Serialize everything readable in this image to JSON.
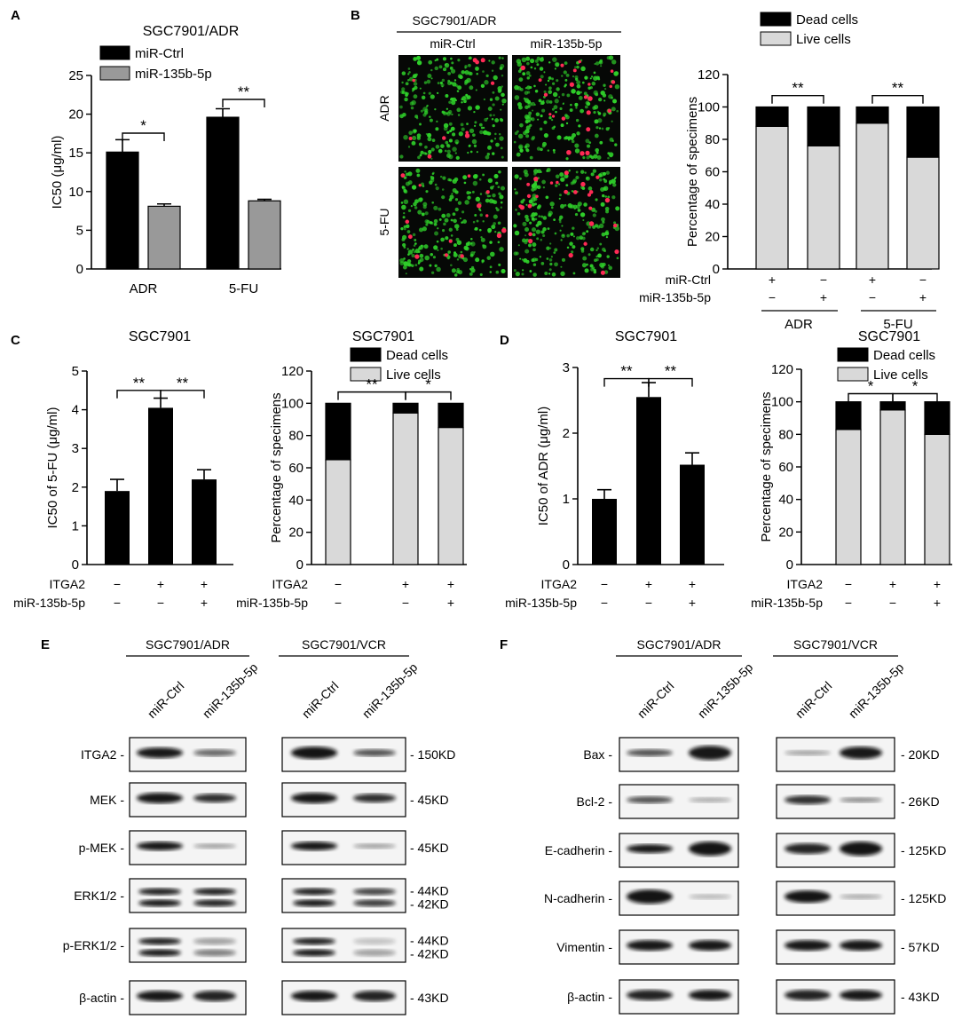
{
  "colors": {
    "black": "#000000",
    "gray": "#999999",
    "light_gray": "#d9d9d9",
    "cell_green": "#2fd12a",
    "cell_red": "#ff2a55"
  },
  "panel_letters": {
    "A": "A",
    "B": "B",
    "C": "C",
    "D": "D",
    "E": "E",
    "F": "F"
  },
  "icons": {
    "micrograph": "fluorescence-micrograph-image",
    "blot": "western-blot-band-image"
  },
  "chart_data": [
    {
      "id": "A",
      "type": "bar",
      "title": "SGC7901/ADR",
      "ylabel": "IC50 (μg/ml)",
      "ylim": [
        0,
        25
      ],
      "yticks": [
        0,
        5,
        10,
        15,
        20,
        25
      ],
      "categories": [
        "ADR",
        "5-FU"
      ],
      "series": [
        {
          "name": "miR-Ctrl",
          "values": [
            15.1,
            19.6
          ],
          "errors": [
            1.6,
            1.1
          ],
          "color": "#000000"
        },
        {
          "name": "miR-135b-5p",
          "values": [
            8.1,
            8.8
          ],
          "errors": [
            0.3,
            0.2
          ],
          "color": "#999999"
        }
      ],
      "significance": [
        {
          "text": "*",
          "category": 0
        },
        {
          "text": "**",
          "category": 1
        }
      ],
      "legend_position": "top-left"
    },
    {
      "id": "B",
      "type": "bar",
      "stacked": true,
      "ylabel": "Percentage of specimens",
      "ylim": [
        0,
        120
      ],
      "yticks": [
        0,
        20,
        40,
        60,
        80,
        100,
        120
      ],
      "legend": [
        "Dead cells",
        "Live cells"
      ],
      "legend_position": "top",
      "series": [
        {
          "name": "Live cells",
          "values": [
            88,
            76,
            90,
            69
          ]
        },
        {
          "name": "Dead cells",
          "values": [
            12,
            24,
            10,
            31
          ]
        }
      ],
      "row_labels": [
        "miR-Ctrl",
        "miR-135b-5p"
      ],
      "conditions": [
        [
          "+",
          "−"
        ],
        [
          "−",
          "+"
        ],
        [
          "+",
          "−"
        ],
        [
          "−",
          "+"
        ]
      ],
      "groups": [
        "ADR",
        "5-FU"
      ],
      "significance": [
        {
          "text": "**",
          "from": 0,
          "to": 1
        },
        {
          "text": "**",
          "from": 2,
          "to": 3
        }
      ]
    },
    {
      "id": "C1",
      "type": "bar",
      "title": "SGC7901",
      "ylabel": "IC50 of 5-FU (μg/ml)",
      "ylim": [
        0,
        5
      ],
      "yticks": [
        0,
        1,
        2,
        3,
        4,
        5
      ],
      "values": [
        1.9,
        4.05,
        2.2
      ],
      "errors": [
        0.3,
        0.25,
        0.25
      ],
      "row_labels": [
        "ITGA2",
        "miR-135b-5p"
      ],
      "conditions": [
        [
          "−",
          "−"
        ],
        [
          "+",
          "−"
        ],
        [
          "+",
          "+"
        ]
      ],
      "significance": [
        {
          "text": "**",
          "from": 0,
          "to": 1
        },
        {
          "text": "**",
          "from": 1,
          "to": 2
        }
      ]
    },
    {
      "id": "C2",
      "type": "bar",
      "stacked": true,
      "title": "SGC7901",
      "ylabel": "Percentage of specimens",
      "ylim": [
        0,
        120
      ],
      "yticks": [
        0,
        20,
        40,
        60,
        80,
        100,
        120
      ],
      "legend": [
        "Dead cells",
        "Live cells"
      ],
      "legend_position": "top-right",
      "series": [
        {
          "name": "Live cells",
          "values": [
            65,
            94,
            85
          ]
        },
        {
          "name": "Dead cells",
          "values": [
            35,
            6,
            15
          ]
        }
      ],
      "row_labels": [
        "ITGA2",
        "miR-135b-5p"
      ],
      "conditions": [
        [
          "−",
          "−"
        ],
        [
          "+",
          "−"
        ],
        [
          "+",
          "+"
        ]
      ],
      "significance": [
        {
          "text": "**",
          "from": 0,
          "to": 1
        },
        {
          "text": "*",
          "from": 1,
          "to": 2
        }
      ]
    },
    {
      "id": "D1",
      "type": "bar",
      "title": "SGC7901",
      "ylabel": "IC50 of ADR (μg/ml)",
      "ylim": [
        0,
        3
      ],
      "yticks": [
        0,
        1,
        2,
        3
      ],
      "values": [
        1.0,
        2.55,
        1.52
      ],
      "errors": [
        0.14,
        0.22,
        0.18
      ],
      "row_labels": [
        "ITGA2",
        "miR-135b-5p"
      ],
      "conditions": [
        [
          "−",
          "−"
        ],
        [
          "+",
          "−"
        ],
        [
          "+",
          "+"
        ]
      ],
      "significance": [
        {
          "text": "**",
          "from": 0,
          "to": 1
        },
        {
          "text": "**",
          "from": 1,
          "to": 2
        }
      ]
    },
    {
      "id": "D2",
      "type": "bar",
      "stacked": true,
      "title": "SGC7901",
      "ylabel": "Percentage of specimens",
      "ylim": [
        0,
        120
      ],
      "yticks": [
        0,
        20,
        40,
        60,
        80,
        100,
        120
      ],
      "legend": [
        "Dead cells",
        "Live cells"
      ],
      "legend_position": "top-right",
      "series": [
        {
          "name": "Live cells",
          "values": [
            83,
            95,
            80
          ]
        },
        {
          "name": "Dead cells",
          "values": [
            17,
            5,
            20
          ]
        }
      ],
      "row_labels": [
        "ITGA2",
        "miR-135b-5p"
      ],
      "conditions": [
        [
          "−",
          "−"
        ],
        [
          "+",
          "−"
        ],
        [
          "+",
          "+"
        ]
      ],
      "significance": [
        {
          "text": "*",
          "from": 0,
          "to": 1
        },
        {
          "text": "*",
          "from": 1,
          "to": 2
        }
      ]
    }
  ],
  "micrograph": {
    "cell_line": "SGC7901/ADR",
    "columns": [
      "miR-Ctrl",
      "miR-135b-5p"
    ],
    "rows": [
      "ADR",
      "5-FU"
    ]
  },
  "blots_E": {
    "cell_lines": [
      "SGC7901/ADR",
      "SGC7901/VCR"
    ],
    "lanes": [
      "miR-Ctrl",
      "miR-135b-5p"
    ],
    "proteins": [
      "ITGA2 -",
      "MEK -",
      "p-MEK -",
      "ERK1/2 -",
      "p-ERK1/2 -",
      "β-actin -"
    ],
    "sizes": [
      [
        "- 150KD"
      ],
      [
        "- 45KD"
      ],
      [
        "- 45KD"
      ],
      [
        "- 44KD",
        "- 42KD"
      ],
      [
        "- 44KD",
        "- 42KD"
      ],
      [
        "- 43KD"
      ]
    ]
  },
  "blots_F": {
    "cell_lines": [
      "SGC7901/ADR",
      "SGC7901/VCR"
    ],
    "lanes": [
      "miR-Ctrl",
      "miR-135b-5p"
    ],
    "proteins": [
      "Bax -",
      "Bcl-2 -",
      "E-cadherin -",
      "N-cadherin -",
      "Vimentin -",
      "β-actin -"
    ],
    "sizes": [
      [
        "- 20KD"
      ],
      [
        "- 26KD"
      ],
      [
        "- 125KD"
      ],
      [
        "- 125KD"
      ],
      [
        "- 57KD"
      ],
      [
        "- 43KD"
      ]
    ]
  }
}
